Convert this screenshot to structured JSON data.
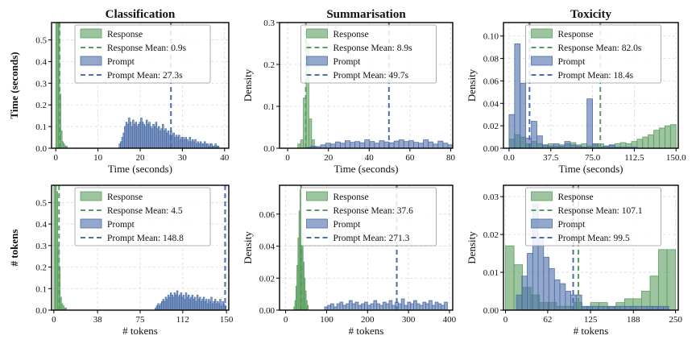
{
  "figure": {
    "col_titles": [
      "Classification",
      "Summarisation",
      "Toxicity"
    ],
    "row_labels": [
      "Time (seconds)",
      "# tokens"
    ]
  },
  "colors": {
    "response": "#5a9e5f",
    "prompt": "#4c6ea8",
    "grid": "#d4d4d4"
  },
  "chart_data": [
    {
      "type": "histogram",
      "row": 0,
      "col": 0,
      "xlabel": "Time (seconds)",
      "ylabel": "",
      "xlim": [
        -1,
        41
      ],
      "ylim": [
        0,
        0.58
      ],
      "xticks": [
        0,
        10,
        20,
        30,
        40
      ],
      "xticklabels": [
        "0",
        "10",
        "20",
        "30",
        "40"
      ],
      "yticks": [
        0,
        0.1,
        0.2,
        0.3,
        0.4,
        0.5
      ],
      "yticklabels": [
        "0.0",
        "0.1",
        "0.2",
        "0.3",
        "0.4",
        "0.5"
      ],
      "grid": true,
      "legend_position": "top-center",
      "legend": [
        "Response",
        "Response Mean: 0.9s",
        "Prompt",
        "Prompt Mean: 27.3s"
      ],
      "series": [
        {
          "name": "Response",
          "bin_start": 0.0,
          "bin_width": 0.3,
          "values": [
            0.6,
            0.6,
            0.58,
            0.25,
            0.08,
            0.03,
            0.02,
            0.01,
            0.01
          ]
        },
        {
          "name": "Prompt",
          "bin_start": 15.0,
          "bin_width": 0.32,
          "values": [
            0.02,
            0.03,
            0.05,
            0.07,
            0.1,
            0.12,
            0.11,
            0.14,
            0.12,
            0.1,
            0.13,
            0.11,
            0.12,
            0.1,
            0.11,
            0.12,
            0.14,
            0.12,
            0.11,
            0.1,
            0.13,
            0.11,
            0.12,
            0.1,
            0.09,
            0.11,
            0.1,
            0.12,
            0.09,
            0.1,
            0.08,
            0.09,
            0.11,
            0.08,
            0.09,
            0.07,
            0.08,
            0.06,
            0.08,
            0.06,
            0.07,
            0.05,
            0.06,
            0.05,
            0.06,
            0.04,
            0.05,
            0.05,
            0.04,
            0.05,
            0.04,
            0.03,
            0.05,
            0.03,
            0.04,
            0.03,
            0.04,
            0.02,
            0.03,
            0.02,
            0.03,
            0.02,
            0.02,
            0.03,
            0.02,
            0.02,
            0.01,
            0.02,
            0.02,
            0.01,
            0.01,
            0.02,
            0.01,
            0.01
          ]
        }
      ],
      "means": [
        {
          "name": "Response Mean",
          "value": 0.9
        },
        {
          "name": "Prompt Mean",
          "value": 27.3
        }
      ]
    },
    {
      "type": "histogram",
      "row": 0,
      "col": 1,
      "xlabel": "Time (seconds)",
      "ylabel": "Density",
      "xlim": [
        -4,
        81
      ],
      "ylim": [
        0,
        0.3
      ],
      "xticks": [
        0,
        20,
        40,
        60,
        80
      ],
      "xticklabels": [
        "0",
        "20",
        "40",
        "60",
        "80"
      ],
      "yticks": [
        0,
        0.1,
        0.2,
        0.3
      ],
      "yticklabels": [
        "0.0",
        "0.1",
        "0.2",
        "0.3"
      ],
      "grid": true,
      "legend_position": "top-center",
      "legend": [
        "Response",
        "Response Mean: 8.9s",
        "Prompt",
        "Prompt Mean: 49.7s"
      ],
      "series": [
        {
          "name": "Response",
          "bin_start": 5.0,
          "bin_width": 1.35,
          "values": [
            0.01,
            0.02,
            0.12,
            0.25,
            0.07,
            0.02
          ]
        },
        {
          "name": "Prompt",
          "bin_start": 9.0,
          "bin_width": 2.4,
          "values": [
            0.002,
            0.005,
            0.004,
            0.008,
            0.012,
            0.01,
            0.015,
            0.012,
            0.018,
            0.014,
            0.016,
            0.013,
            0.02,
            0.016,
            0.012,
            0.018,
            0.015,
            0.013,
            0.017,
            0.02,
            0.016,
            0.018,
            0.014,
            0.012,
            0.02,
            0.015,
            0.01,
            0.017,
            0.012,
            0.008
          ]
        }
      ],
      "means": [
        {
          "name": "Response Mean",
          "value": 8.9
        },
        {
          "name": "Prompt Mean",
          "value": 49.7
        }
      ]
    },
    {
      "type": "histogram",
      "row": 0,
      "col": 2,
      "xlabel": "Time (seconds)",
      "ylabel": "Density",
      "xlim": [
        -5,
        152
      ],
      "ylim": [
        0,
        0.112
      ],
      "xticks": [
        0,
        37.5,
        75,
        112.5,
        150
      ],
      "xticklabels": [
        "0.0",
        "37.5",
        "75.0",
        "112.5",
        "150.0"
      ],
      "yticks": [
        0,
        0.02,
        0.04,
        0.06,
        0.08,
        0.1
      ],
      "yticklabels": [
        "0.00",
        "0.02",
        "0.04",
        "0.06",
        "0.08",
        "0.10"
      ],
      "grid": true,
      "legend_position": "top-center",
      "legend": [
        "Response",
        "Response Mean: 82.0s",
        "Prompt",
        "Prompt Mean: 18.4s"
      ],
      "series": [
        {
          "name": "Response",
          "bin_start": 0.0,
          "bin_width": 5.0,
          "values": [
            0.008,
            0.012,
            0.01,
            0.004,
            0.006,
            0.004,
            0.003,
            0.004,
            0.002,
            0.003,
            0.004,
            0.005,
            0.003,
            0.004,
            0.002,
            0.003,
            0.004,
            0.002,
            0.003,
            0.004,
            0.005,
            0.004,
            0.006,
            0.008,
            0.01,
            0.012,
            0.016,
            0.018,
            0.02,
            0.021
          ]
        },
        {
          "name": "Prompt",
          "bin_start": 0.0,
          "bin_width": 5.0,
          "values": [
            0.03,
            0.093,
            0.058,
            0.009,
            0.024,
            0.011,
            0.003,
            0.002,
            0.004,
            0.002,
            0.006,
            0.003,
            0.002,
            0.001,
            0.044,
            0.004,
            0.001,
            0.002,
            0.003,
            0.001,
            0.001,
            0.001,
            0.001
          ]
        }
      ],
      "means": [
        {
          "name": "Response Mean",
          "value": 82.0
        },
        {
          "name": "Prompt Mean",
          "value": 18.4
        }
      ]
    },
    {
      "type": "histogram",
      "row": 1,
      "col": 0,
      "xlabel": "# tokens",
      "ylabel": "",
      "xlim": [
        -2,
        152
      ],
      "ylim": [
        0,
        0.58
      ],
      "xticks": [
        0,
        38,
        75,
        112,
        150
      ],
      "xticklabels": [
        "0",
        "38",
        "75",
        "112",
        "150"
      ],
      "yticks": [
        0,
        0.1,
        0.2,
        0.3,
        0.4,
        0.5
      ],
      "yticklabels": [
        "0.0",
        "0.1",
        "0.2",
        "0.3",
        "0.4",
        "0.5"
      ],
      "grid": true,
      "legend_position": "top-center",
      "legend": [
        "Response",
        "Response Mean: 4.5",
        "Prompt",
        "Prompt Mean: 148.8"
      ],
      "series": [
        {
          "name": "Response",
          "bin_start": 0.0,
          "bin_width": 1.1,
          "values": [
            0.6,
            0.58,
            0.55,
            0.3,
            0.2,
            0.06,
            0.03,
            0.02,
            0.01,
            0.01
          ]
        },
        {
          "name": "Prompt",
          "bin_start": 88.0,
          "bin_width": 1.1,
          "values": [
            0.01,
            0.02,
            0.03,
            0.02,
            0.03,
            0.04,
            0.05,
            0.04,
            0.06,
            0.05,
            0.07,
            0.06,
            0.08,
            0.07,
            0.06,
            0.08,
            0.07,
            0.09,
            0.06,
            0.07,
            0.08,
            0.06,
            0.07,
            0.05,
            0.08,
            0.06,
            0.07,
            0.05,
            0.06,
            0.07,
            0.05,
            0.06,
            0.04,
            0.07,
            0.05,
            0.06,
            0.04,
            0.05,
            0.06,
            0.04,
            0.05,
            0.03,
            0.05,
            0.04,
            0.06,
            0.03,
            0.04,
            0.05,
            0.03,
            0.04,
            0.03,
            0.05,
            0.02,
            0.04,
            0.03,
            0.02
          ]
        }
      ],
      "means": [
        {
          "name": "Response Mean",
          "value": 4.5
        },
        {
          "name": "Prompt Mean",
          "value": 148.8
        }
      ]
    },
    {
      "type": "histogram",
      "row": 1,
      "col": 1,
      "xlabel": "# tokens",
      "ylabel": "Density",
      "xlim": [
        -15,
        408
      ],
      "ylim": [
        0,
        0.078
      ],
      "xticks": [
        0,
        100,
        200,
        300,
        400
      ],
      "xticklabels": [
        "0",
        "100",
        "200",
        "300",
        "400"
      ],
      "yticks": [
        0,
        0.02,
        0.04,
        0.06
      ],
      "yticklabels": [
        "0.00",
        "0.02",
        "0.04",
        "0.06"
      ],
      "grid": true,
      "legend_position": "top-center",
      "legend": [
        "Response",
        "Response Mean: 37.6",
        "Prompt",
        "Prompt Mean: 271.3"
      ],
      "series": [
        {
          "name": "Response",
          "bin_start": 20.0,
          "bin_width": 2.5,
          "values": [
            0.002,
            0.006,
            0.015,
            0.028,
            0.045,
            0.062,
            0.075,
            0.06,
            0.045,
            0.03,
            0.02,
            0.012,
            0.006,
            0.003
          ]
        },
        {
          "name": "Prompt",
          "bin_start": 95.0,
          "bin_width": 7.5,
          "values": [
            0.002,
            0.003,
            0.004,
            0.002,
            0.004,
            0.005,
            0.003,
            0.004,
            0.006,
            0.004,
            0.005,
            0.003,
            0.004,
            0.005,
            0.003,
            0.004,
            0.006,
            0.004,
            0.003,
            0.005,
            0.004,
            0.006,
            0.003,
            0.005,
            0.004,
            0.007,
            0.003,
            0.005,
            0.004,
            0.006,
            0.004,
            0.003,
            0.005,
            0.004,
            0.006,
            0.003,
            0.005,
            0.004,
            0.003,
            0.005
          ]
        }
      ],
      "means": [
        {
          "name": "Response Mean",
          "value": 37.6
        },
        {
          "name": "Prompt Mean",
          "value": 271.3
        }
      ]
    },
    {
      "type": "histogram",
      "row": 1,
      "col": 2,
      "xlabel": "# tokens",
      "ylabel": "Density",
      "xlim": [
        -3,
        254
      ],
      "ylim": [
        0,
        0.033
      ],
      "xticks": [
        0,
        62,
        125,
        188,
        250
      ],
      "xticklabels": [
        "0",
        "62",
        "125",
        "188",
        "250"
      ],
      "yticks": [
        0,
        0.01,
        0.02,
        0.03
      ],
      "yticklabels": [
        "0.00",
        "0.01",
        "0.02",
        "0.03"
      ],
      "grid": true,
      "legend_position": "top-center",
      "legend": [
        "Response",
        "Response Mean: 107.1",
        "Prompt",
        "Prompt Mean: 99.5"
      ],
      "series": [
        {
          "name": "Response",
          "bin_start": 0.0,
          "bin_width": 12.5,
          "values": [
            0.017,
            0.012,
            0.006,
            0.004,
            0.002,
            0.002,
            0.001,
            0.001,
            0.002,
            0.001,
            0.002,
            0.002,
            0.001,
            0.002,
            0.003,
            0.003,
            0.005,
            0.009,
            0.016,
            0.016
          ]
        },
        {
          "name": "Prompt",
          "bin_start": 0.0,
          "bin_width": 8.0,
          "values": [
            0.0,
            0.0,
            0.004,
            0.009,
            0.015,
            0.028,
            0.019,
            0.014,
            0.011,
            0.008,
            0.007,
            0.005,
            0.004,
            0.004,
            0.001,
            0.001,
            0.001,
            0.001,
            0.001,
            0.001,
            0.001,
            0.001,
            0.001,
            0.001,
            0.001,
            0.001,
            0.001,
            0.001,
            0.001,
            0.001
          ]
        }
      ],
      "means": [
        {
          "name": "Response Mean",
          "value": 107.1
        },
        {
          "name": "Prompt Mean",
          "value": 99.5
        }
      ]
    }
  ]
}
